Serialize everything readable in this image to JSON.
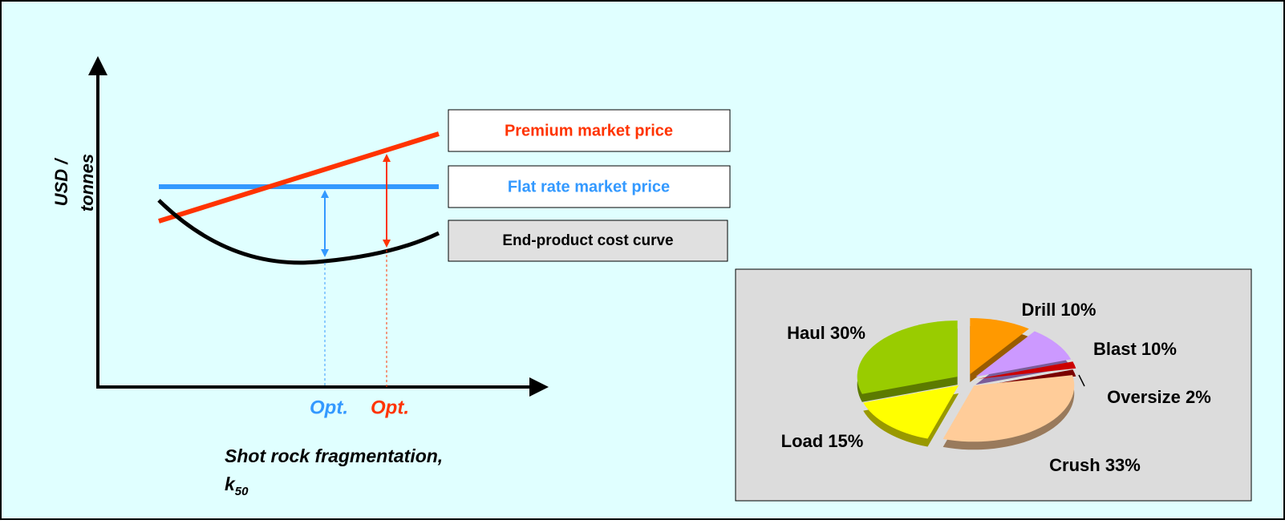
{
  "diagram": {
    "y_label": [
      "USD /",
      "tonnes"
    ],
    "x_label": {
      "text": "Shot rock fragmentation,",
      "symbol": "k",
      "subscript": "50"
    },
    "boxes": [
      "Premium market price",
      "Flat rate market price",
      "End-product cost curve"
    ],
    "optimum_labels": [
      "Opt.",
      "Opt."
    ]
  },
  "chart_data": {
    "type": "pie",
    "values": [
      10,
      10,
      2,
      33,
      15,
      30
    ],
    "value_labels": [
      "Drill 10%",
      "Blast 10%",
      "Oversize 2%",
      "Crush 33%",
      "Load 15%",
      "Haul 30%"
    ],
    "colors": [
      "#ff9900",
      "#cc99ff",
      "#cc0000",
      "#ffcc99",
      "#ffff00",
      "#99cc00"
    ]
  }
}
